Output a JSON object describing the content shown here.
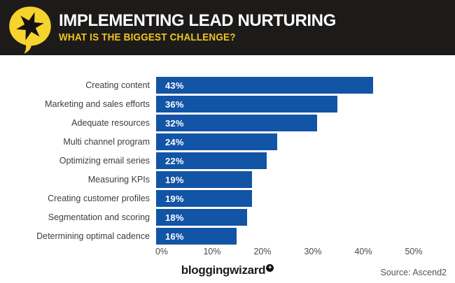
{
  "header": {
    "title": "IMPLEMENTING LEAD NURTURING",
    "subtitle": "WHAT IS THE BIGGEST CHALLENGE?",
    "logo_icon": "star-speech-bubble-icon",
    "colors": {
      "header_bg": "#1d1b1a",
      "title": "#ffffff",
      "subtitle": "#eec51f",
      "logo_yellow": "#f6d32d",
      "logo_star": "#141211"
    }
  },
  "chart_data": {
    "type": "bar",
    "orientation": "horizontal",
    "title": "IMPLEMENTING LEAD NURTURING",
    "subtitle": "WHAT IS THE BIGGEST CHALLENGE?",
    "categories": [
      "Creating content",
      "Marketing and sales efforts",
      "Adequate resources",
      "Multi channel program",
      "Optimizing email series",
      "Measuring KPIs",
      "Creating customer profiles",
      "Segmentation and scoring",
      "Determining optimal cadence"
    ],
    "values": [
      43,
      36,
      32,
      24,
      22,
      19,
      19,
      18,
      16
    ],
    "value_labels": [
      "43%",
      "36%",
      "32%",
      "24%",
      "22%",
      "19%",
      "19%",
      "18%",
      "16%"
    ],
    "x_ticks": [
      "0%",
      "10%",
      "20%",
      "30%",
      "40%",
      "50%"
    ],
    "xlim": [
      0,
      50
    ],
    "bar_color": "#1254a5",
    "value_label_color": "#ffffff",
    "grid": false,
    "legend": "none"
  },
  "footer": {
    "brand": "bloggingwizard",
    "brand_badge_icon": "star-badge-icon",
    "brand_badge_glyph": "✦",
    "source": "Source: Ascend2"
  }
}
